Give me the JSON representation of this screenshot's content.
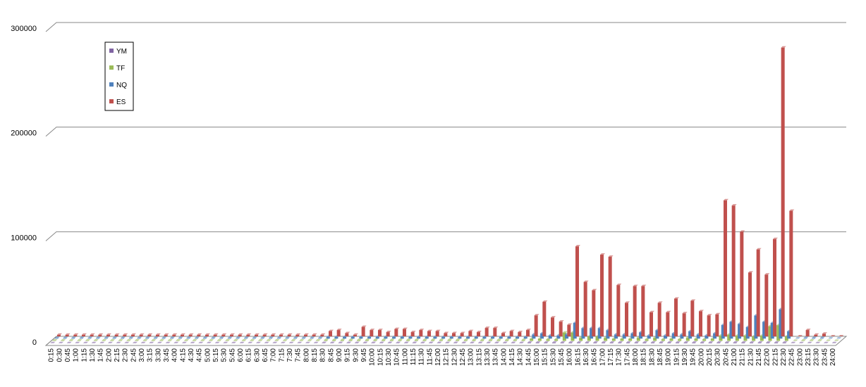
{
  "chart_data": {
    "type": "bar3d",
    "categories": [
      "0:15",
      "0:30",
      "0:45",
      "1:00",
      "1:15",
      "1:30",
      "1:45",
      "2:00",
      "2:15",
      "2:30",
      "2:45",
      "3:00",
      "3:15",
      "3:30",
      "3:45",
      "4:00",
      "4:15",
      "4:30",
      "4:45",
      "5:00",
      "5:15",
      "5:30",
      "5:45",
      "6:00",
      "6:15",
      "6:30",
      "6:45",
      "7:00",
      "7:15",
      "7:30",
      "7:45",
      "8:00",
      "8:15",
      "8:30",
      "8:45",
      "9:00",
      "9:15",
      "9:30",
      "9:45",
      "10:00",
      "10:15",
      "10:30",
      "10:45",
      "11:00",
      "11:15",
      "11:30",
      "11:45",
      "12:00",
      "12:15",
      "12:30",
      "12:45",
      "13:00",
      "13:15",
      "13:30",
      "13:45",
      "14:00",
      "14:15",
      "14:30",
      "14:45",
      "15:00",
      "15:15",
      "15:30",
      "15:45",
      "16:00",
      "16:15",
      "16:30",
      "16:45",
      "17:00",
      "17:15",
      "17:30",
      "17:45",
      "18:00",
      "18:15",
      "18:30",
      "18:45",
      "19:00",
      "19:15",
      "19:30",
      "19:45",
      "20:00",
      "20:15",
      "20:30",
      "20:45",
      "21:00",
      "21:15",
      "21:30",
      "21:45",
      "22:00",
      "22:15",
      "22:30",
      "22:45",
      "23:00",
      "23:15",
      "23:30",
      "23:45",
      "24:00"
    ],
    "series": [
      {
        "name": "YM",
        "color": "#8064a2",
        "values": [
          0,
          0,
          0,
          0,
          0,
          0,
          0,
          0,
          0,
          0,
          0,
          0,
          0,
          0,
          0,
          0,
          0,
          0,
          0,
          0,
          0,
          0,
          0,
          0,
          0,
          0,
          0,
          0,
          0,
          0,
          0,
          0,
          0,
          200,
          200,
          200,
          200,
          200,
          200,
          200,
          200,
          200,
          200,
          200,
          200,
          200,
          200,
          200,
          200,
          200,
          200,
          200,
          200,
          200,
          200,
          200,
          200,
          200,
          500,
          500,
          500,
          500,
          500,
          500,
          500,
          500,
          500,
          500,
          500,
          500,
          500,
          500,
          500,
          500,
          500,
          500,
          500,
          500,
          500,
          500,
          500,
          500,
          500,
          500,
          500,
          500,
          500,
          500,
          500,
          500,
          0,
          0,
          0,
          0,
          0,
          0
        ]
      },
      {
        "name": "TF",
        "color": "#9bbb59",
        "values": [
          300,
          300,
          300,
          300,
          300,
          300,
          300,
          300,
          300,
          300,
          300,
          300,
          300,
          300,
          300,
          300,
          300,
          300,
          300,
          300,
          300,
          300,
          300,
          300,
          300,
          300,
          300,
          300,
          300,
          300,
          300,
          300,
          300,
          800,
          800,
          800,
          800,
          800,
          800,
          800,
          800,
          800,
          800,
          800,
          800,
          800,
          800,
          800,
          800,
          800,
          800,
          800,
          800,
          800,
          800,
          800,
          800,
          800,
          2000,
          2000,
          1500,
          1500,
          8000,
          8000,
          3000,
          4000,
          4000,
          3000,
          2000,
          2000,
          2000,
          3000,
          1500,
          3000,
          1500,
          2000,
          1500,
          3000,
          2000,
          1500,
          2000,
          5000,
          6000,
          5000,
          5000,
          4000,
          5000,
          14000,
          15000,
          4000,
          0,
          300,
          300,
          300,
          0,
          0
        ]
      },
      {
        "name": "NQ",
        "color": "#4f81bd",
        "values": [
          500,
          500,
          500,
          500,
          500,
          500,
          500,
          500,
          500,
          500,
          500,
          500,
          500,
          500,
          500,
          500,
          500,
          500,
          500,
          500,
          500,
          500,
          500,
          500,
          500,
          500,
          500,
          500,
          500,
          500,
          500,
          500,
          500,
          1500,
          1500,
          1500,
          1500,
          1500,
          1500,
          1500,
          1500,
          1500,
          1500,
          1500,
          1500,
          1500,
          1500,
          1500,
          1500,
          1500,
          1500,
          1500,
          1500,
          1500,
          1500,
          1500,
          1500,
          1500,
          4000,
          5000,
          3000,
          3000,
          4000,
          15000,
          10000,
          10000,
          10000,
          8000,
          4000,
          4000,
          5000,
          6000,
          3000,
          8000,
          3000,
          5000,
          4000,
          7000,
          4000,
          3000,
          5000,
          13000,
          16000,
          14000,
          11000,
          22000,
          16000,
          15000,
          28000,
          7000,
          0,
          500,
          500,
          500,
          0,
          0
        ]
      },
      {
        "name": "ES",
        "color": "#c0504d",
        "values": [
          1500,
          1500,
          1500,
          1500,
          1500,
          1500,
          1500,
          1500,
          1500,
          1500,
          1500,
          1500,
          1500,
          1500,
          1500,
          1500,
          1500,
          1500,
          1500,
          1500,
          1500,
          1500,
          1500,
          1500,
          1500,
          1500,
          1500,
          1500,
          1500,
          1500,
          1500,
          1500,
          1500,
          5000,
          6000,
          3000,
          1500,
          9000,
          6000,
          6000,
          4000,
          7000,
          7000,
          4000,
          6000,
          5000,
          5000,
          3000,
          3000,
          3000,
          5000,
          4000,
          8000,
          8000,
          3000,
          5000,
          4000,
          6000,
          20000,
          33000,
          18000,
          14000,
          11000,
          86000,
          52000,
          44000,
          78000,
          76000,
          49000,
          32000,
          48000,
          48000,
          23000,
          32000,
          23000,
          36000,
          22000,
          34000,
          24000,
          20000,
          21000,
          130000,
          125000,
          100000,
          61000,
          83000,
          59000,
          93000,
          276000,
          120000,
          0,
          6000,
          1500,
          2500,
          0,
          0
        ]
      }
    ],
    "ylim": [
      0,
      300000
    ],
    "yticks": [
      0,
      100000,
      200000,
      300000
    ],
    "grid": true,
    "legend": "upper-left"
  }
}
